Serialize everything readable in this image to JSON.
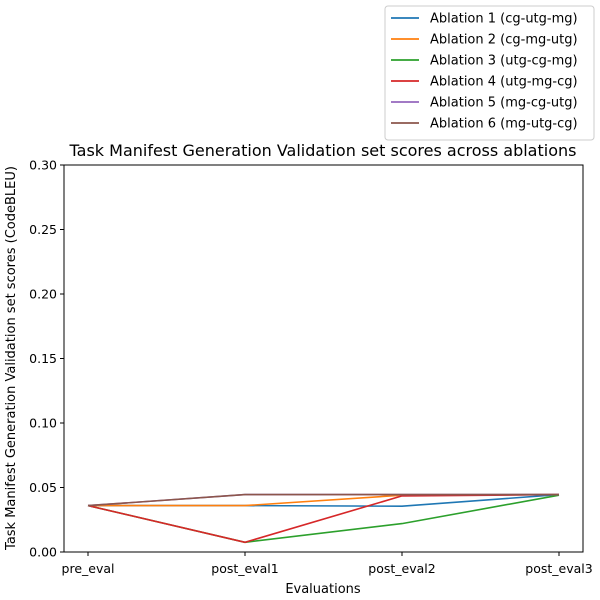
{
  "chart_data": {
    "type": "line",
    "title": "Task Manifest Generation Validation set scores across ablations",
    "xlabel": "Evaluations",
    "ylabel": "Task Manifest Generation Validation set scores (CodeBLEU)",
    "categories": [
      "pre_eval",
      "post_eval1",
      "post_eval2",
      "post_eval3"
    ],
    "ylim": [
      0,
      0.3
    ],
    "yticks": [
      "0.00",
      "0.05",
      "0.10",
      "0.15",
      "0.20",
      "0.25",
      "0.30"
    ],
    "grid": false,
    "legend_position": "top-right",
    "series": [
      {
        "name": "Ablation 1 (cg-utg-mg)",
        "color": "#1f77b4",
        "values": [
          0.036,
          0.036,
          0.0355,
          0.0445
        ]
      },
      {
        "name": "Ablation 2 (cg-mg-utg)",
        "color": "#ff7f0e",
        "values": [
          0.036,
          0.036,
          0.044,
          0.0445
        ]
      },
      {
        "name": "Ablation 3 (utg-cg-mg)",
        "color": "#2ca02c",
        "values": [
          0.036,
          0.0075,
          0.022,
          0.044
        ]
      },
      {
        "name": "Ablation 4 (utg-mg-cg)",
        "color": "#d62728",
        "values": [
          0.036,
          0.0075,
          0.0435,
          0.0445
        ]
      },
      {
        "name": "Ablation 5 (mg-cg-utg)",
        "color": "#9467bd",
        "values": [
          0.036,
          0.0445,
          0.0445,
          0.0445
        ]
      },
      {
        "name": "Ablation 6 (mg-utg-cg)",
        "color": "#8c564b",
        "values": [
          0.036,
          0.0445,
          0.0445,
          0.0445
        ]
      }
    ]
  }
}
